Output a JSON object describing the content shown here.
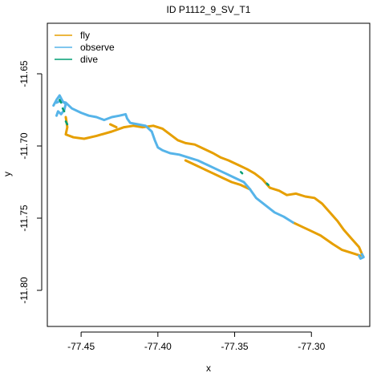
{
  "chart_data": {
    "type": "line",
    "title": "ID P1112_9_SV_T1",
    "xlabel": "x",
    "ylabel": "y",
    "xlim": [
      -77.472,
      -77.262
    ],
    "ylim": [
      -11.825,
      -11.615
    ],
    "x_ticks": [
      -77.45,
      -77.4,
      -77.35,
      -77.3
    ],
    "x_tick_labels": [
      "-77.45",
      "-77.40",
      "-77.35",
      "-77.30"
    ],
    "y_ticks": [
      -11.65,
      -11.7,
      -11.75,
      -11.8
    ],
    "y_tick_labels": [
      "-11.65",
      "-11.70",
      "-11.75",
      "-11.80"
    ],
    "grid": false,
    "legend_position": "top-left",
    "series": [
      {
        "name": "fly",
        "color": "#E69F00",
        "segments": [
          [
            [
              -77.46,
              -11.68
            ],
            [
              -77.459,
              -11.687
            ],
            [
              -77.46,
              -11.692
            ],
            [
              -77.455,
              -11.694
            ],
            [
              -77.448,
              -11.695
            ],
            [
              -77.44,
              -11.693
            ],
            [
              -77.43,
              -11.69
            ],
            [
              -77.422,
              -11.687
            ],
            [
              -77.416,
              -11.686
            ],
            [
              -77.41,
              -11.687
            ],
            [
              -77.403,
              -11.686
            ],
            [
              -77.397,
              -11.688
            ],
            [
              -77.392,
              -11.692
            ],
            [
              -77.387,
              -11.696
            ],
            [
              -77.382,
              -11.698
            ],
            [
              -77.376,
              -11.699
            ],
            [
              -77.37,
              -11.702
            ],
            [
              -77.364,
              -11.705
            ],
            [
              -77.359,
              -11.708
            ],
            [
              -77.354,
              -11.71
            ],
            [
              -77.348,
              -11.713
            ],
            [
              -77.342,
              -11.716
            ],
            [
              -77.337,
              -11.719
            ],
            [
              -77.332,
              -11.723
            ],
            [
              -77.327,
              -11.729
            ],
            [
              -77.321,
              -11.731
            ],
            [
              -77.316,
              -11.734
            ],
            [
              -77.31,
              -11.733
            ],
            [
              -77.304,
              -11.735
            ],
            [
              -77.298,
              -11.736
            ],
            [
              -77.293,
              -11.74
            ],
            [
              -77.288,
              -11.746
            ],
            [
              -77.283,
              -11.752
            ],
            [
              -77.279,
              -11.758
            ],
            [
              -77.274,
              -11.764
            ],
            [
              -77.269,
              -11.77
            ],
            [
              -77.267,
              -11.775
            ]
          ],
          [
            [
              -77.268,
              -11.776
            ],
            [
              -77.274,
              -11.774
            ],
            [
              -77.28,
              -11.772
            ],
            [
              -77.286,
              -11.768
            ],
            [
              -77.29,
              -11.765
            ],
            [
              -77.294,
              -11.762
            ],
            [
              -77.3,
              -11.759
            ],
            [
              -77.306,
              -11.756
            ],
            [
              -77.312,
              -11.753
            ]
          ],
          [
            [
              -77.34,
              -11.73
            ],
            [
              -77.346,
              -11.727
            ],
            [
              -77.352,
              -11.725
            ],
            [
              -77.358,
              -11.722
            ],
            [
              -77.364,
              -11.719
            ],
            [
              -77.37,
              -11.716
            ],
            [
              -77.376,
              -11.713
            ],
            [
              -77.382,
              -11.71
            ]
          ],
          [
            [
              -77.427,
              -11.687
            ],
            [
              -77.431,
              -11.685
            ]
          ]
        ]
      },
      {
        "name": "observe",
        "color": "#56B4E9",
        "segments": [
          [
            [
              -77.466,
              -11.67
            ],
            [
              -77.464,
              -11.669
            ],
            [
              -77.46,
              -11.67
            ],
            [
              -77.456,
              -11.674
            ],
            [
              -77.45,
              -11.677
            ],
            [
              -77.445,
              -11.679
            ],
            [
              -77.44,
              -11.68
            ],
            [
              -77.435,
              -11.682
            ],
            [
              -77.43,
              -11.68
            ],
            [
              -77.425,
              -11.679
            ],
            [
              -77.421,
              -11.678
            ],
            [
              -77.42,
              -11.681
            ],
            [
              -77.418,
              -11.684
            ],
            [
              -77.413,
              -11.685
            ],
            [
              -77.408,
              -11.686
            ],
            [
              -77.404,
              -11.69
            ],
            [
              -77.402,
              -11.696
            ],
            [
              -77.4,
              -11.701
            ],
            [
              -77.397,
              -11.703
            ],
            [
              -77.392,
              -11.705
            ],
            [
              -77.386,
              -11.706
            ],
            [
              -77.38,
              -11.708
            ],
            [
              -77.374,
              -11.71
            ],
            [
              -77.368,
              -11.713
            ],
            [
              -77.362,
              -11.716
            ],
            [
              -77.356,
              -11.719
            ],
            [
              -77.35,
              -11.722
            ],
            [
              -77.344,
              -11.725
            ],
            [
              -77.34,
              -11.73
            ]
          ],
          [
            [
              -77.312,
              -11.753
            ],
            [
              -77.318,
              -11.749
            ],
            [
              -77.324,
              -11.746
            ],
            [
              -77.33,
              -11.741
            ],
            [
              -77.336,
              -11.736
            ],
            [
              -77.34,
              -11.73
            ]
          ],
          [
            [
              -77.468,
              -11.672
            ],
            [
              -77.466,
              -11.668
            ],
            [
              -77.464,
              -11.665
            ],
            [
              -77.462,
              -11.669
            ],
            [
              -77.46,
              -11.671
            ],
            [
              -77.461,
              -11.675
            ],
            [
              -77.463,
              -11.678
            ],
            [
              -77.465,
              -11.676
            ],
            [
              -77.466,
              -11.679
            ]
          ],
          [
            [
              -77.267,
              -11.775
            ],
            [
              -77.266,
              -11.777
            ],
            [
              -77.268,
              -11.778
            ],
            [
              -77.269,
              -11.776
            ]
          ]
        ]
      },
      {
        "name": "dive",
        "color": "#009E73",
        "segments": [
          [
            [
              -77.464,
              -11.668
            ],
            [
              -77.463,
              -11.67
            ]
          ],
          [
            [
              -77.462,
              -11.674
            ],
            [
              -77.461,
              -11.676
            ]
          ],
          [
            [
              -77.46,
              -11.683
            ],
            [
              -77.459,
              -11.685
            ]
          ],
          [
            [
              -77.346,
              -11.718
            ],
            [
              -77.345,
              -11.719
            ]
          ],
          [
            [
              -77.329,
              -11.726
            ],
            [
              -77.328,
              -11.727
            ]
          ]
        ]
      }
    ]
  }
}
